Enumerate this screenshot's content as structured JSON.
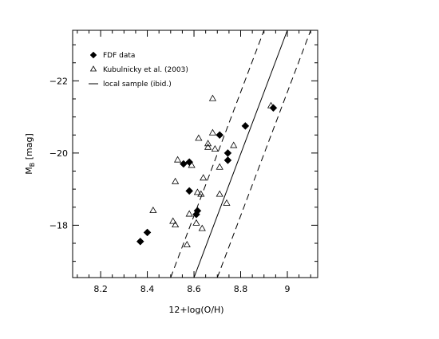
{
  "chart_data": {
    "type": "scatter",
    "title": "",
    "xlabel": "12+log(O/H)",
    "ylabel_main": "M",
    "ylabel_sub": "B",
    "ylabel_unit": " [mag]",
    "xlim": [
      8.08,
      9.13
    ],
    "ylim": [
      -16.55,
      -23.4
    ],
    "x_ticks": [
      8.2,
      8.4,
      8.6,
      8.8,
      9
    ],
    "x_tick_labels": [
      "8.2",
      "8.4",
      "8.6",
      "8.8",
      "9"
    ],
    "y_ticks": [
      -18,
      -20,
      -22
    ],
    "y_tick_labels": [
      "−18",
      "−20",
      "−22"
    ],
    "legend_position": "top-left",
    "series": [
      {
        "name": "FDF data",
        "marker": "filled-diamond",
        "color": "#000000",
        "points": [
          {
            "x": 8.37,
            "y": -17.55
          },
          {
            "x": 8.4,
            "y": -17.8
          },
          {
            "x": 8.555,
            "y": -19.7
          },
          {
            "x": 8.58,
            "y": -19.75
          },
          {
            "x": 8.58,
            "y": -18.95
          },
          {
            "x": 8.61,
            "y": -18.3
          },
          {
            "x": 8.615,
            "y": -18.4
          },
          {
            "x": 8.71,
            "y": -20.5
          },
          {
            "x": 8.745,
            "y": -19.8
          },
          {
            "x": 8.745,
            "y": -20.0
          },
          {
            "x": 8.82,
            "y": -20.75
          },
          {
            "x": 8.94,
            "y": -21.25
          }
        ]
      },
      {
        "name": "Kubulnicky et al. (2003)",
        "marker": "open-triangle",
        "color": "#000000",
        "points": [
          {
            "x": 8.425,
            "y": -18.4
          },
          {
            "x": 8.51,
            "y": -18.1
          },
          {
            "x": 8.52,
            "y": -18.0
          },
          {
            "x": 8.52,
            "y": -19.2
          },
          {
            "x": 8.53,
            "y": -19.8
          },
          {
            "x": 8.57,
            "y": -17.45
          },
          {
            "x": 8.58,
            "y": -18.3
          },
          {
            "x": 8.59,
            "y": -19.65
          },
          {
            "x": 8.61,
            "y": -18.05
          },
          {
            "x": 8.615,
            "y": -18.9
          },
          {
            "x": 8.62,
            "y": -20.4
          },
          {
            "x": 8.63,
            "y": -18.85
          },
          {
            "x": 8.635,
            "y": -17.9
          },
          {
            "x": 8.64,
            "y": -19.3
          },
          {
            "x": 8.66,
            "y": -20.25
          },
          {
            "x": 8.66,
            "y": -20.15
          },
          {
            "x": 8.68,
            "y": -20.55
          },
          {
            "x": 8.68,
            "y": -21.5
          },
          {
            "x": 8.69,
            "y": -20.1
          },
          {
            "x": 8.71,
            "y": -19.6
          },
          {
            "x": 8.71,
            "y": -18.85
          },
          {
            "x": 8.74,
            "y": -18.6
          },
          {
            "x": 8.77,
            "y": -20.2
          },
          {
            "x": 8.93,
            "y": -21.3
          }
        ]
      }
    ],
    "lines": [
      {
        "name": "local sample (ibid.)",
        "style": "solid",
        "x": [
          8.6,
          9.0
        ],
        "y": [
          -16.55,
          -23.4
        ]
      },
      {
        "style": "dashed",
        "x": [
          8.5,
          8.9
        ],
        "y": [
          -16.55,
          -23.4
        ]
      },
      {
        "style": "dashed",
        "x": [
          8.7,
          9.1
        ],
        "y": [
          -16.55,
          -23.4
        ]
      }
    ]
  }
}
